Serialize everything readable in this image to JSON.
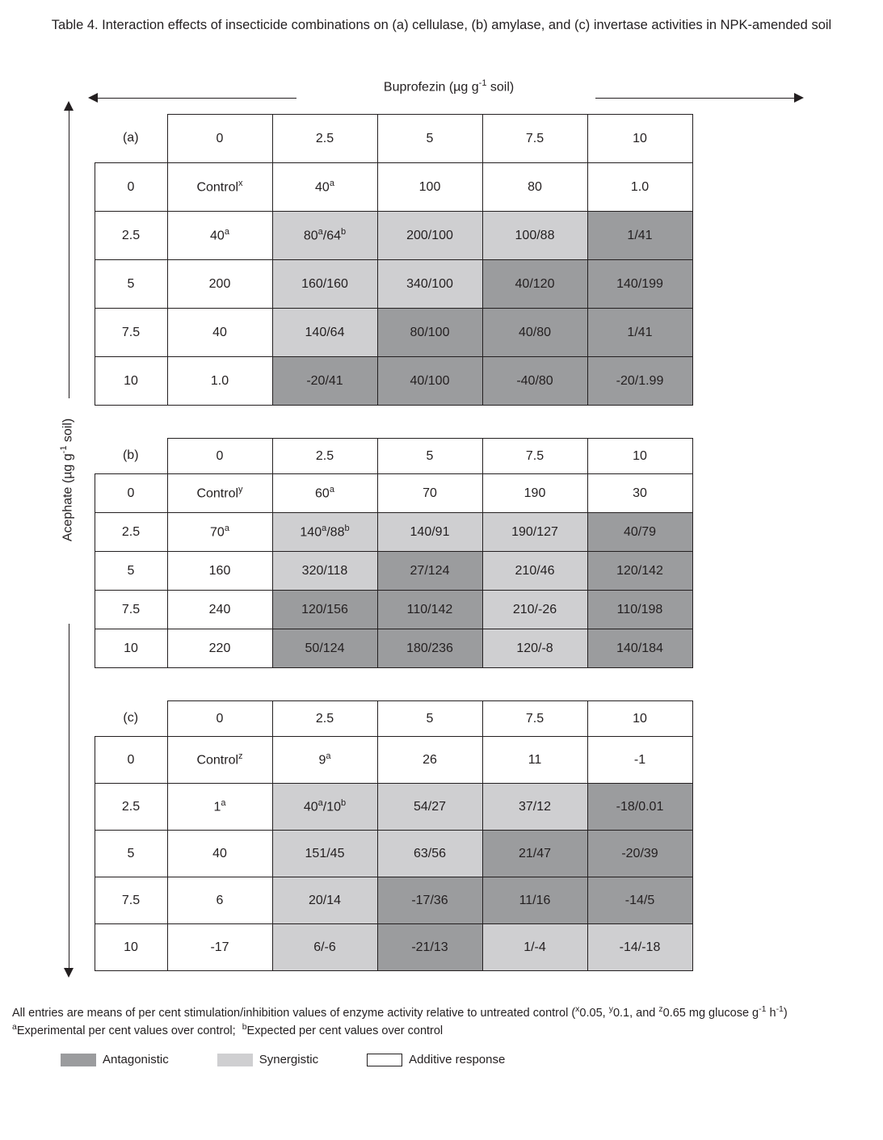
{
  "title_line": "Table 4.  Interaction effects of insecticide combinations on (a) cellulase,  (b) amylase, and (c) invertase activities in NPK-amended soil",
  "top_axis_label_html": "Buprofezin (µg g<span class='sup'>-1</span> soil)",
  "side_axis_label_html": "Acephate (µg g<span class='sup'>-1</span> soil)",
  "col_headers": [
    "0",
    "2.5",
    "5",
    "7.5",
    "10"
  ],
  "row_headers": [
    "0",
    "2.5",
    "5",
    "7.5",
    "10"
  ],
  "colors": {
    "antagonistic": "#9b9c9e",
    "synergistic": "#cfcfd1",
    "additive": "#ffffff",
    "border": "#231f20",
    "text": "#231f20",
    "background": "#ffffff"
  },
  "tables": {
    "a": {
      "corner": "(a)",
      "row_h": "row-a",
      "cells": [
        [
          {
            "html": "Control<span class='sup'>x</span>",
            "cls": "add"
          },
          {
            "html": "40<span class='sup'>a</span>",
            "cls": "add"
          },
          {
            "html": "100",
            "cls": "add"
          },
          {
            "html": "80",
            "cls": "add"
          },
          {
            "html": "1.0",
            "cls": "add"
          }
        ],
        [
          {
            "html": "40<span class='sup'>a</span>",
            "cls": "add"
          },
          {
            "html": "80<span class='sup'>a</span>/64<span class='sup'>b</span>",
            "cls": "syn"
          },
          {
            "html": "200/100",
            "cls": "syn"
          },
          {
            "html": "100/88",
            "cls": "syn"
          },
          {
            "html": "1/41",
            "cls": "ant"
          }
        ],
        [
          {
            "html": "200",
            "cls": "add"
          },
          {
            "html": "160/160",
            "cls": "syn"
          },
          {
            "html": "340/100",
            "cls": "syn"
          },
          {
            "html": "40/120",
            "cls": "ant"
          },
          {
            "html": "140/199",
            "cls": "ant"
          }
        ],
        [
          {
            "html": "40",
            "cls": "add"
          },
          {
            "html": "140/64",
            "cls": "syn"
          },
          {
            "html": "80/100",
            "cls": "ant"
          },
          {
            "html": "40/80",
            "cls": "ant"
          },
          {
            "html": "1/41",
            "cls": "ant"
          }
        ],
        [
          {
            "html": "1.0",
            "cls": "add"
          },
          {
            "html": "-20/41",
            "cls": "ant"
          },
          {
            "html": "40/100",
            "cls": "ant"
          },
          {
            "html": "-40/80",
            "cls": "ant"
          },
          {
            "html": "-20/1.99",
            "cls": "ant"
          }
        ]
      ]
    },
    "b": {
      "corner": "(b)",
      "row_h": "row-b",
      "cells": [
        [
          {
            "html": "Control<span class='sup'>y</span>",
            "cls": "add"
          },
          {
            "html": "60<span class='sup'>a</span>",
            "cls": "add"
          },
          {
            "html": "70",
            "cls": "add"
          },
          {
            "html": "190",
            "cls": "add"
          },
          {
            "html": "30",
            "cls": "add"
          }
        ],
        [
          {
            "html": "70<span class='sup'>a</span>",
            "cls": "add"
          },
          {
            "html": "140<span class='sup'>a</span>/88<span class='sup'>b</span>",
            "cls": "syn"
          },
          {
            "html": "140/91",
            "cls": "syn"
          },
          {
            "html": "190/127",
            "cls": "syn"
          },
          {
            "html": "40/79",
            "cls": "ant"
          }
        ],
        [
          {
            "html": "160",
            "cls": "add"
          },
          {
            "html": "320/118",
            "cls": "syn"
          },
          {
            "html": "27/124",
            "cls": "ant"
          },
          {
            "html": "210/46",
            "cls": "syn"
          },
          {
            "html": "120/142",
            "cls": "ant"
          }
        ],
        [
          {
            "html": "240",
            "cls": "add"
          },
          {
            "html": "120/156",
            "cls": "ant"
          },
          {
            "html": "110/142",
            "cls": "ant"
          },
          {
            "html": "210/-26",
            "cls": "syn"
          },
          {
            "html": "110/198",
            "cls": "ant"
          }
        ],
        [
          {
            "html": "220",
            "cls": "add"
          },
          {
            "html": "50/124",
            "cls": "ant"
          },
          {
            "html": "180/236",
            "cls": "ant"
          },
          {
            "html": "120/-8",
            "cls": "syn"
          },
          {
            "html": "140/184",
            "cls": "ant"
          }
        ]
      ]
    },
    "c": {
      "corner": "(c)",
      "row_h": "row-c",
      "cells": [
        [
          {
            "html": "Control<span class='sup'>z</span>",
            "cls": "add"
          },
          {
            "html": "9<span class='sup'>a</span>",
            "cls": "add"
          },
          {
            "html": "26",
            "cls": "add"
          },
          {
            "html": "11",
            "cls": "add"
          },
          {
            "html": "-1",
            "cls": "add"
          }
        ],
        [
          {
            "html": "1<span class='sup'>a</span>",
            "cls": "add"
          },
          {
            "html": "40<span class='sup'>a</span>/10<span class='sup'>b</span>",
            "cls": "syn"
          },
          {
            "html": "54/27",
            "cls": "syn"
          },
          {
            "html": "37/12",
            "cls": "syn"
          },
          {
            "html": "-18/0.01",
            "cls": "ant"
          }
        ],
        [
          {
            "html": "40",
            "cls": "add"
          },
          {
            "html": "151/45",
            "cls": "syn"
          },
          {
            "html": "63/56",
            "cls": "syn"
          },
          {
            "html": "21/47",
            "cls": "ant"
          },
          {
            "html": "-20/39",
            "cls": "ant"
          }
        ],
        [
          {
            "html": "6",
            "cls": "add"
          },
          {
            "html": "20/14",
            "cls": "syn"
          },
          {
            "html": "-17/36",
            "cls": "ant"
          },
          {
            "html": "11/16",
            "cls": "ant"
          },
          {
            "html": "-14/5",
            "cls": "ant"
          }
        ],
        [
          {
            "html": "-17",
            "cls": "add"
          },
          {
            "html": "6/-6",
            "cls": "syn"
          },
          {
            "html": "-21/13",
            "cls": "ant"
          },
          {
            "html": "1/-4",
            "cls": "syn"
          },
          {
            "html": "-14/-18",
            "cls": "syn"
          }
        ]
      ]
    }
  },
  "footnotes": {
    "line1_html": "All entries are means of per cent stimulation/inhibition values of enzyme activity relative to untreated control (<span class='fsup'>x</span>0.05, <span class='fsup'>y</span>0.1, and <span class='fsup'>z</span>0.65 mg glucose g<span class='fsup'>-1</span> h<span class='fsup'>-1</span>)",
    "line2_html": "<span class='fsup'>a</span>Experimental per cent values over control;&nbsp; <span class='fsup'>b</span>Expected per cent values over control"
  },
  "legend": {
    "antagonistic": "Antagonistic",
    "synergistic": "Synergistic",
    "additive": "Additive response"
  }
}
